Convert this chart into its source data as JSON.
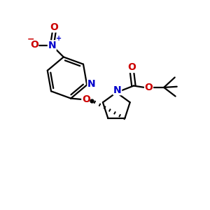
{
  "bg_color": "#ffffff",
  "bond_color": "#000000",
  "N_color": "#0000cc",
  "O_color": "#cc0000",
  "font_size": 10,
  "bond_width": 1.6,
  "figsize": [
    3.0,
    3.0
  ],
  "dpi": 100,
  "xlim": [
    0,
    10
  ],
  "ylim": [
    0,
    10
  ]
}
